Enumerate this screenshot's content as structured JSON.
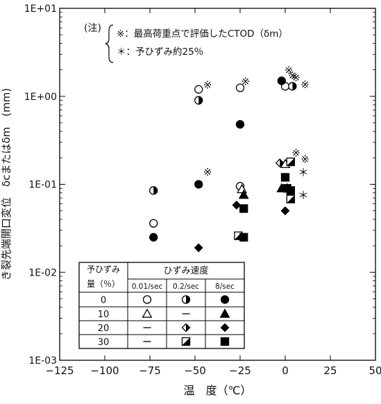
{
  "chart_data": {
    "type": "scatter",
    "x_axis": {
      "label": "温　度（℃）",
      "range": [
        -125,
        50
      ],
      "ticks": [
        -125,
        -100,
        -75,
        -50,
        -25,
        0,
        25,
        50
      ],
      "tick_labels": [
        "−125",
        "−100",
        "−75",
        "−50",
        "−25",
        "0",
        "25",
        "50"
      ]
    },
    "y_axis": {
      "label": "き裂先端開口変位　δcまたはδm　(mm)",
      "scale": "log",
      "range": [
        0.001,
        10
      ],
      "ticks": [
        0.001,
        0.01,
        0.1,
        1,
        10
      ],
      "tick_labels": [
        "1E-03",
        "1E-02",
        "1E-01",
        "1E+00",
        "1E+01"
      ]
    },
    "grid": false,
    "annotation": {
      "prefix": "(注)",
      "lines": [
        "※：最高荷重点で評価したCTOD（δm）",
        "＊：予ひずみ約25％"
      ]
    },
    "legend": {
      "placement": "bottom-left",
      "header_prestrain": "予ひずみ量（％）",
      "header_rate": "ひずみ速度",
      "rates": [
        "0.01/sec",
        "0.2/sec",
        "8/sec"
      ],
      "rows": [
        {
          "prestrain": "0",
          "symbols": [
            "circle-open",
            "circle-half",
            "circle-filled"
          ]
        },
        {
          "prestrain": "10",
          "symbols": [
            "triangle-open",
            "dash",
            "triangle-filled"
          ]
        },
        {
          "prestrain": "20",
          "symbols": [
            "dash",
            "diamond-half",
            "diamond-filled"
          ]
        },
        {
          "prestrain": "30",
          "symbols": [
            "dash",
            "square-half",
            "square-filled"
          ]
        }
      ]
    },
    "series": [
      {
        "prestrain": "0",
        "rate": "0.01/sec",
        "marker": "circle-open",
        "points": [
          [
            -73,
            0.036
          ],
          [
            -48,
            1.2
          ],
          [
            -25,
            0.095
          ],
          [
            -25,
            1.25
          ],
          [
            0,
            1.3
          ]
        ]
      },
      {
        "prestrain": "0",
        "rate": "0.2/sec",
        "marker": "circle-half",
        "points": [
          [
            -73,
            0.085
          ],
          [
            -48,
            0.9
          ],
          [
            4,
            1.3
          ]
        ]
      },
      {
        "prestrain": "0",
        "rate": "8/sec",
        "marker": "circle-filled",
        "points": [
          [
            -73,
            0.025
          ],
          [
            -48,
            0.1
          ],
          [
            -25,
            0.48
          ],
          [
            -2,
            1.5
          ]
        ]
      },
      {
        "prestrain": "10",
        "rate": "0.01/sec",
        "marker": "triangle-open",
        "points": [
          [
            0,
            0.17
          ],
          [
            -24,
            0.088
          ]
        ]
      },
      {
        "prestrain": "10",
        "rate": "8/sec",
        "marker": "triangle-filled",
        "points": [
          [
            -23,
            0.076
          ],
          [
            -2,
            0.09
          ],
          [
            1,
            0.09
          ]
        ]
      },
      {
        "prestrain": "20",
        "rate": "0.2/sec",
        "marker": "diamond-half",
        "points": [
          [
            -3,
            0.175
          ]
        ]
      },
      {
        "prestrain": "20",
        "rate": "8/sec",
        "marker": "diamond-filled",
        "points": [
          [
            -48,
            0.019
          ],
          [
            -27,
            0.058
          ],
          [
            0,
            0.05
          ]
        ]
      },
      {
        "prestrain": "30",
        "rate": "0.2/sec",
        "marker": "square-half",
        "points": [
          [
            -26,
            0.026
          ],
          [
            3,
            0.068
          ],
          [
            3,
            0.18
          ]
        ]
      },
      {
        "prestrain": "30",
        "rate": "8/sec",
        "marker": "square-filled",
        "points": [
          [
            -23,
            0.025
          ],
          [
            -23,
            0.053
          ],
          [
            0,
            0.12
          ],
          [
            1,
            0.09
          ],
          [
            3,
            0.085
          ]
        ]
      }
    ],
    "max_load_marks": [
      [
        -43,
        1.37
      ],
      [
        -22,
        1.5
      ],
      [
        2,
        2.0
      ],
      [
        4,
        1.75
      ],
      [
        6,
        1.65
      ],
      [
        11,
        1.38
      ],
      [
        -43,
        0.14
      ],
      [
        6,
        0.23
      ],
      [
        11,
        0.195
      ]
    ],
    "prestrain25_marks": [
      [
        10,
        0.145
      ],
      [
        10,
        0.08
      ]
    ]
  }
}
